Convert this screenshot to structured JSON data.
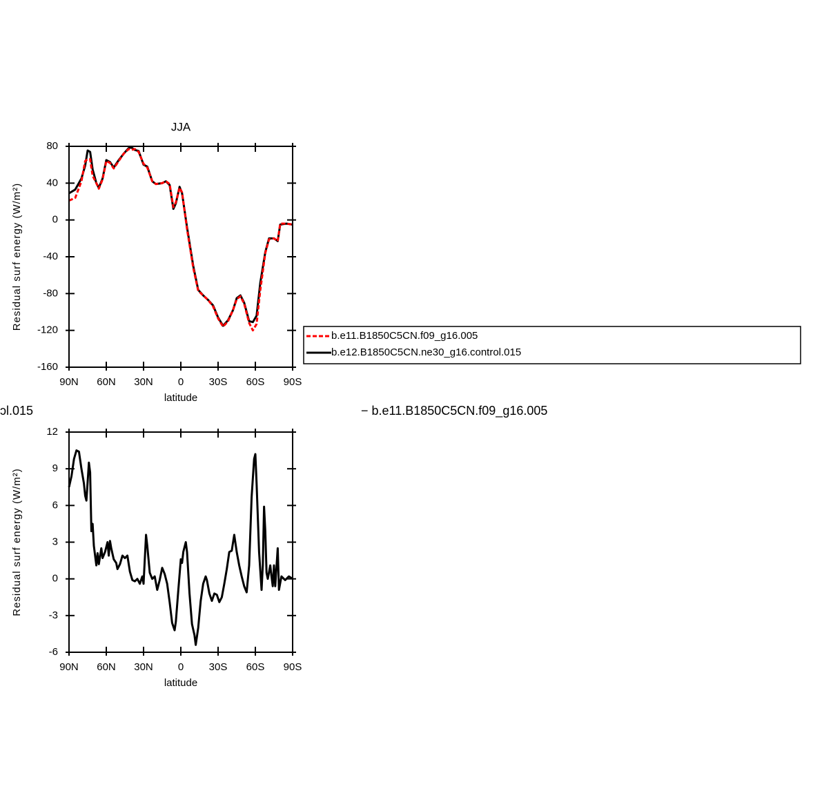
{
  "chart_data": [
    {
      "type": "line",
      "title": "JJA",
      "ylabel": "Residual surf energy (W/m²)",
      "xlabel": "latitude",
      "xlim": [
        90,
        -90
      ],
      "xticks": [
        {
          "value": 90,
          "label": "90N"
        },
        {
          "value": 60,
          "label": "60N"
        },
        {
          "value": 30,
          "label": "30N"
        },
        0,
        {
          "value": -30,
          "label": "30S"
        },
        {
          "value": -60,
          "label": "60S"
        },
        {
          "value": -90,
          "label": "90S"
        }
      ],
      "ylim": [
        -160,
        80
      ],
      "yticks": [
        80,
        40,
        0,
        -40,
        -80,
        -120,
        -160
      ],
      "x": [
        90,
        85,
        80,
        77,
        75,
        73,
        71,
        68,
        66,
        63,
        60,
        57,
        54,
        50,
        46,
        42,
        40,
        37,
        34,
        30,
        27,
        23,
        20,
        15,
        12,
        9,
        6,
        4,
        1,
        -1,
        -5,
        -10,
        -14,
        -18,
        -22,
        -26,
        -30,
        -34,
        -38,
        -42,
        -45,
        -48,
        -51,
        -55,
        -58,
        -61,
        -64,
        -68,
        -71,
        -75,
        -78,
        -80,
        -85,
        -90
      ],
      "series": [
        {
          "name": "b.e12.B1850C5CN.ne30_g16.control.015",
          "color": "#000000",
          "line_style": "solid",
          "values": [
            29,
            33,
            45,
            59,
            75.5,
            74,
            55,
            40,
            35,
            45,
            65,
            63,
            57,
            65,
            72,
            78,
            79,
            76,
            75,
            60,
            58,
            42,
            39,
            40,
            42,
            38,
            12,
            18,
            36,
            29,
            -8,
            -50,
            -76,
            -82,
            -87,
            -93,
            -106,
            -115,
            -109,
            -98,
            -85,
            -82,
            -90,
            -110,
            -111,
            -104,
            -68,
            -35,
            -20,
            -20,
            -23,
            -5,
            -4,
            -5
          ]
        },
        {
          "name": "b.e11.B1850C5CN.f09_g16.005",
          "color": "#ff0000",
          "line_style": "dashed",
          "values": [
            21,
            24,
            42,
            64,
            66,
            66,
            48,
            40,
            34,
            44,
            64,
            62,
            56,
            64,
            72,
            77,
            76,
            77,
            74,
            61,
            57,
            42,
            39,
            40,
            42,
            39,
            14,
            19,
            35,
            30,
            -10,
            -52,
            -77,
            -82,
            -87,
            -94,
            -107,
            -116,
            -110,
            -98,
            -86,
            -83,
            -91,
            -112,
            -120,
            -113,
            -76,
            -36,
            -21,
            -20,
            -23,
            -4,
            -4,
            -5
          ]
        }
      ],
      "legend": true
    },
    {
      "type": "line",
      "title_fragments": [
        "ɔl.015",
        "− b.e11.B1850C5CN.f09_g16.005"
      ],
      "ylabel": "Residual surf energy (W/m²)",
      "xlabel": "latitude",
      "xlim": [
        90,
        -90
      ],
      "xticks": [
        {
          "value": 90,
          "label": "90N"
        },
        {
          "value": 60,
          "label": "60N"
        },
        {
          "value": 30,
          "label": "30N"
        },
        0,
        {
          "value": -30,
          "label": "30S"
        },
        {
          "value": -60,
          "label": "60S"
        },
        {
          "value": -90,
          "label": "90S"
        }
      ],
      "ylim": [
        -6,
        12
      ],
      "yticks": [
        12,
        9,
        6,
        3,
        0,
        -3,
        -6
      ],
      "x": [
        90,
        88,
        86,
        84,
        82,
        80,
        78,
        77,
        76,
        74,
        73,
        72,
        71,
        70,
        68,
        67,
        66,
        64,
        63,
        61,
        59,
        58,
        57,
        56,
        54,
        52,
        51,
        49,
        47,
        45,
        43,
        41,
        39,
        37,
        35,
        33,
        31,
        30,
        28,
        27,
        25,
        23,
        21,
        19,
        17,
        15,
        13,
        11,
        9,
        7,
        5,
        4,
        2,
        0,
        -1,
        -2,
        -4,
        -5,
        -7,
        -9,
        -11,
        -12,
        -14,
        -16,
        -18,
        -20,
        -21,
        -23,
        -25,
        -27,
        -29,
        -31,
        -33,
        -35,
        -37,
        -39,
        -41,
        -43,
        -45,
        -47,
        -49,
        -51,
        -53,
        -55,
        -57,
        -59,
        -60,
        -61,
        -63,
        -65,
        -66,
        -67,
        -68,
        -69,
        -70,
        -72,
        -73,
        -74,
        -75,
        -76,
        -78,
        -79,
        -81,
        -84,
        -87,
        -90
      ],
      "series": [
        {
          "color": "#000000",
          "line_style": "solid",
          "values": [
            7.5,
            8.4,
            9.8,
            10.5,
            10.4,
            9,
            7.8,
            6.8,
            6.4,
            9.5,
            8.7,
            3.9,
            4.5,
            2.7,
            1.1,
            2.1,
            1.2,
            2.5,
            1.7,
            2.2,
            3,
            1.9,
            3.1,
            2.5,
            1.6,
            1.3,
            0.8,
            1.2,
            1.9,
            1.7,
            1.9,
            0.6,
            -0.1,
            -0.2,
            0,
            -0.4,
            0.2,
            -0.4,
            3.6,
            2.7,
            0.5,
            0,
            0.2,
            -0.9,
            -0.1,
            0.9,
            0.4,
            -0.4,
            -1.9,
            -3.6,
            -4.2,
            -3.5,
            -0.9,
            1.6,
            1.3,
            2.2,
            3,
            2.2,
            -1.2,
            -3.7,
            -4.6,
            -5.4,
            -4,
            -1.8,
            -0.4,
            0.2,
            -0.1,
            -1.2,
            -1.8,
            -1.2,
            -1.3,
            -1.9,
            -1.5,
            -0.4,
            0.8,
            2.2,
            2.3,
            3.6,
            2.2,
            1.1,
            0.2,
            -0.6,
            -1.1,
            1.1,
            6.7,
            9.8,
            10.2,
            7.8,
            2.2,
            -0.9,
            1.1,
            5.9,
            3.9,
            0.5,
            0,
            1.1,
            0.2,
            -0.6,
            1.1,
            -0.6,
            2.5,
            -0.9,
            0.2,
            -0.1,
            0.2,
            0
          ]
        }
      ],
      "legend": false
    }
  ]
}
